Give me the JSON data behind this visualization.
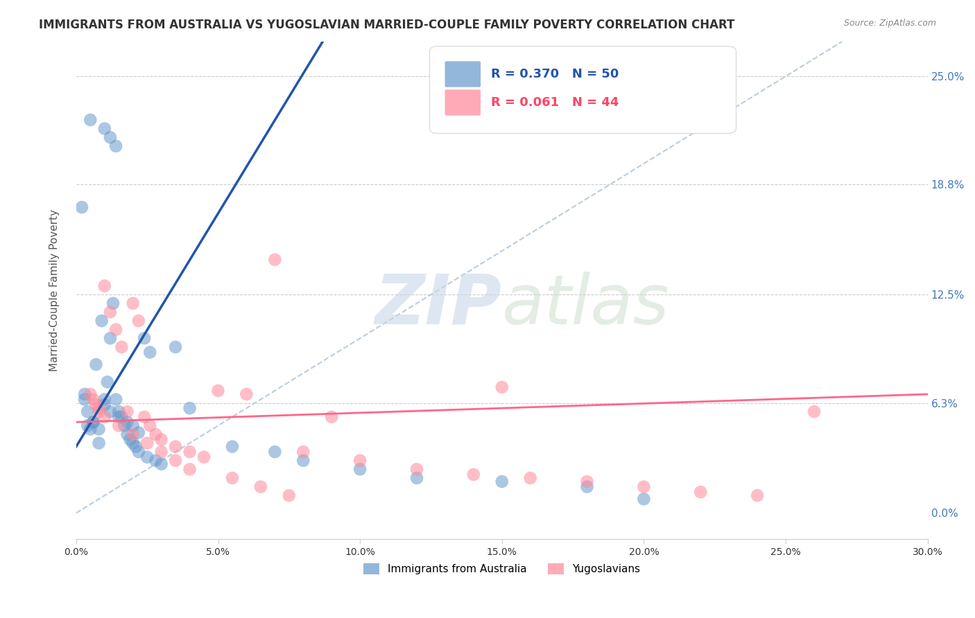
{
  "title": "IMMIGRANTS FROM AUSTRALIA VS YUGOSLAVIAN MARRIED-COUPLE FAMILY POVERTY CORRELATION CHART",
  "source": "Source: ZipAtlas.com",
  "ylabel": "Married-Couple Family Poverty",
  "xtick_positions": [
    0.0,
    0.05,
    0.1,
    0.15,
    0.2,
    0.25,
    0.3
  ],
  "xtick_labels": [
    "0.0%",
    "5.0%",
    "10.0%",
    "15.0%",
    "20.0%",
    "25.0%",
    "30.0%"
  ],
  "ytick_positions": [
    0.0,
    0.063,
    0.125,
    0.188,
    0.25
  ],
  "ytick_labels": [
    "0.0%",
    "6.3%",
    "12.5%",
    "18.8%",
    "25.0%"
  ],
  "xmin": 0.0,
  "xmax": 0.3,
  "ymin": -0.015,
  "ymax": 0.27,
  "legend_r1": "R = 0.370",
  "legend_n1": "N = 50",
  "legend_r2": "R = 0.061",
  "legend_n2": "N = 44",
  "blue_color": "#6699CC",
  "pink_color": "#FF8899",
  "blue_line_color": "#2255AA",
  "pink_line_color": "#FF6688",
  "diag_color": "#BBCCDD",
  "scatter_blue_x": [
    0.005,
    0.01,
    0.012,
    0.014,
    0.002,
    0.003,
    0.004,
    0.005,
    0.006,
    0.007,
    0.008,
    0.009,
    0.01,
    0.011,
    0.012,
    0.013,
    0.014,
    0.015,
    0.016,
    0.017,
    0.018,
    0.019,
    0.02,
    0.021,
    0.022,
    0.025,
    0.028,
    0.03,
    0.035,
    0.04,
    0.003,
    0.004,
    0.006,
    0.008,
    0.01,
    0.012,
    0.015,
    0.018,
    0.02,
    0.022,
    0.024,
    0.026,
    0.055,
    0.07,
    0.08,
    0.1,
    0.12,
    0.15,
    0.18,
    0.2
  ],
  "scatter_blue_y": [
    0.225,
    0.22,
    0.215,
    0.21,
    0.175,
    0.068,
    0.05,
    0.048,
    0.052,
    0.085,
    0.04,
    0.11,
    0.065,
    0.075,
    0.1,
    0.12,
    0.065,
    0.058,
    0.055,
    0.05,
    0.045,
    0.042,
    0.04,
    0.038,
    0.035,
    0.032,
    0.03,
    0.028,
    0.095,
    0.06,
    0.065,
    0.058,
    0.052,
    0.048,
    0.062,
    0.058,
    0.055,
    0.052,
    0.05,
    0.046,
    0.1,
    0.092,
    0.038,
    0.035,
    0.03,
    0.025,
    0.02,
    0.018,
    0.015,
    0.008
  ],
  "scatter_pink_x": [
    0.005,
    0.006,
    0.007,
    0.008,
    0.01,
    0.012,
    0.014,
    0.016,
    0.018,
    0.02,
    0.022,
    0.024,
    0.026,
    0.028,
    0.03,
    0.035,
    0.04,
    0.045,
    0.05,
    0.06,
    0.07,
    0.08,
    0.1,
    0.12,
    0.14,
    0.16,
    0.18,
    0.2,
    0.22,
    0.24,
    0.008,
    0.01,
    0.015,
    0.02,
    0.025,
    0.03,
    0.035,
    0.04,
    0.15,
    0.055,
    0.065,
    0.075,
    0.09,
    0.26
  ],
  "scatter_pink_y": [
    0.068,
    0.065,
    0.062,
    0.058,
    0.13,
    0.115,
    0.105,
    0.095,
    0.058,
    0.12,
    0.11,
    0.055,
    0.05,
    0.045,
    0.042,
    0.038,
    0.035,
    0.032,
    0.07,
    0.068,
    0.145,
    0.035,
    0.03,
    0.025,
    0.022,
    0.02,
    0.018,
    0.015,
    0.012,
    0.01,
    0.06,
    0.055,
    0.05,
    0.045,
    0.04,
    0.035,
    0.03,
    0.025,
    0.072,
    0.02,
    0.015,
    0.01,
    0.055,
    0.058
  ],
  "blue_line_x": [
    0.0,
    0.115
  ],
  "blue_line_y": [
    0.038,
    0.345
  ],
  "pink_line_x": [
    0.0,
    0.3
  ],
  "pink_line_y": [
    0.052,
    0.068
  ]
}
